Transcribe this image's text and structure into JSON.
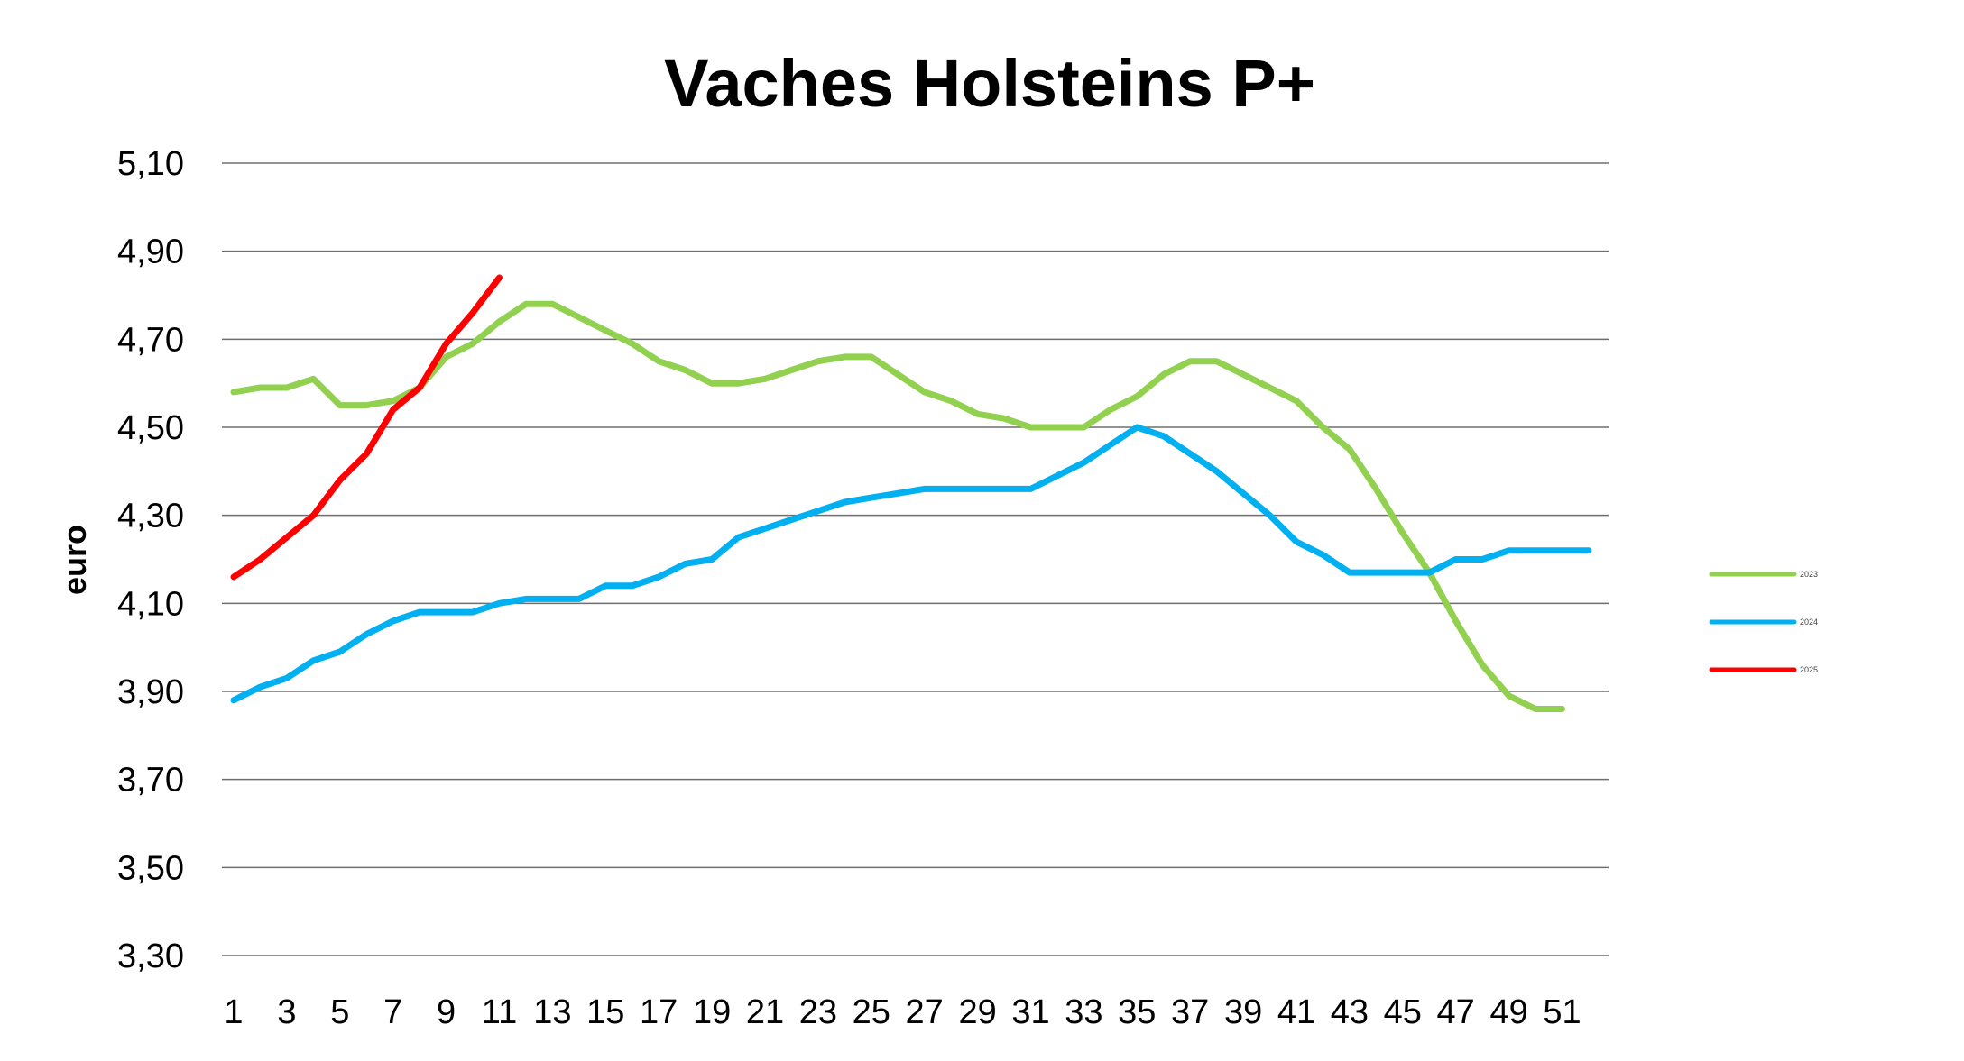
{
  "chart_data": {
    "type": "line",
    "title": "Vaches Holsteins P+",
    "xlabel": "",
    "ylabel": "euro",
    "ylim": [
      3.3,
      5.1
    ],
    "y_ticks": [
      "3,30",
      "3,50",
      "3,70",
      "3,90",
      "4,10",
      "4,30",
      "4,50",
      "4,70",
      "4,90",
      "5,10"
    ],
    "y_tick_values": [
      3.3,
      3.5,
      3.7,
      3.9,
      4.1,
      4.3,
      4.5,
      4.7,
      4.9,
      5.1
    ],
    "xlim": [
      1,
      52
    ],
    "x_ticks": [
      "1",
      "3",
      "5",
      "7",
      "9",
      "11",
      "13",
      "15",
      "17",
      "19",
      "21",
      "23",
      "25",
      "27",
      "29",
      "31",
      "33",
      "35",
      "37",
      "39",
      "41",
      "43",
      "45",
      "47",
      "49",
      "51"
    ],
    "x_tick_values": [
      1,
      3,
      5,
      7,
      9,
      11,
      13,
      15,
      17,
      19,
      21,
      23,
      25,
      27,
      29,
      31,
      33,
      35,
      37,
      39,
      41,
      43,
      45,
      47,
      49,
      51
    ],
    "grid": true,
    "legend_position": "right",
    "series": [
      {
        "name": "2023",
        "color": "#92d050",
        "x": [
          1,
          2,
          3,
          4,
          5,
          6,
          7,
          8,
          9,
          10,
          11,
          12,
          13,
          14,
          15,
          16,
          17,
          18,
          19,
          20,
          21,
          22,
          23,
          24,
          25,
          26,
          27,
          28,
          29,
          30,
          31,
          32,
          33,
          34,
          35,
          36,
          37,
          38,
          39,
          40,
          41,
          42,
          43,
          44,
          45,
          46,
          47,
          48,
          49,
          50,
          51
        ],
        "values": [
          4.58,
          4.59,
          4.59,
          4.61,
          4.55,
          4.55,
          4.56,
          4.59,
          4.66,
          4.69,
          4.74,
          4.78,
          4.78,
          4.75,
          4.72,
          4.69,
          4.65,
          4.63,
          4.6,
          4.6,
          4.61,
          4.63,
          4.65,
          4.66,
          4.66,
          4.62,
          4.58,
          4.56,
          4.53,
          4.52,
          4.5,
          4.5,
          4.5,
          4.54,
          4.57,
          4.62,
          4.65,
          4.65,
          4.62,
          4.59,
          4.56,
          4.5,
          4.45,
          4.36,
          4.26,
          4.17,
          4.06,
          3.96,
          3.89,
          3.86,
          3.86
        ]
      },
      {
        "name": "2024",
        "color": "#00b0f0",
        "x": [
          1,
          2,
          3,
          4,
          5,
          6,
          7,
          8,
          9,
          10,
          11,
          12,
          13,
          14,
          15,
          16,
          17,
          18,
          19,
          20,
          21,
          22,
          23,
          24,
          25,
          26,
          27,
          28,
          29,
          30,
          31,
          32,
          33,
          34,
          35,
          36,
          37,
          38,
          39,
          40,
          41,
          42,
          43,
          44,
          45,
          46,
          47,
          48,
          49,
          50,
          51,
          52
        ],
        "values": [
          3.88,
          3.91,
          3.93,
          3.97,
          3.99,
          4.03,
          4.06,
          4.08,
          4.08,
          4.08,
          4.1,
          4.11,
          4.11,
          4.11,
          4.14,
          4.14,
          4.16,
          4.19,
          4.2,
          4.25,
          4.27,
          4.29,
          4.31,
          4.33,
          4.34,
          4.35,
          4.36,
          4.36,
          4.36,
          4.36,
          4.36,
          4.39,
          4.42,
          4.46,
          4.5,
          4.48,
          4.44,
          4.4,
          4.35,
          4.3,
          4.24,
          4.21,
          4.17,
          4.17,
          4.17,
          4.17,
          4.2,
          4.2,
          4.22,
          4.22,
          4.22,
          4.22
        ]
      },
      {
        "name": "2025",
        "color": "#ff0000",
        "x": [
          1,
          2,
          3,
          4,
          5,
          6,
          7,
          8,
          9,
          10,
          11
        ],
        "values": [
          4.16,
          4.2,
          4.25,
          4.3,
          4.38,
          4.44,
          4.54,
          4.59,
          4.69,
          4.76,
          4.84
        ]
      }
    ]
  }
}
